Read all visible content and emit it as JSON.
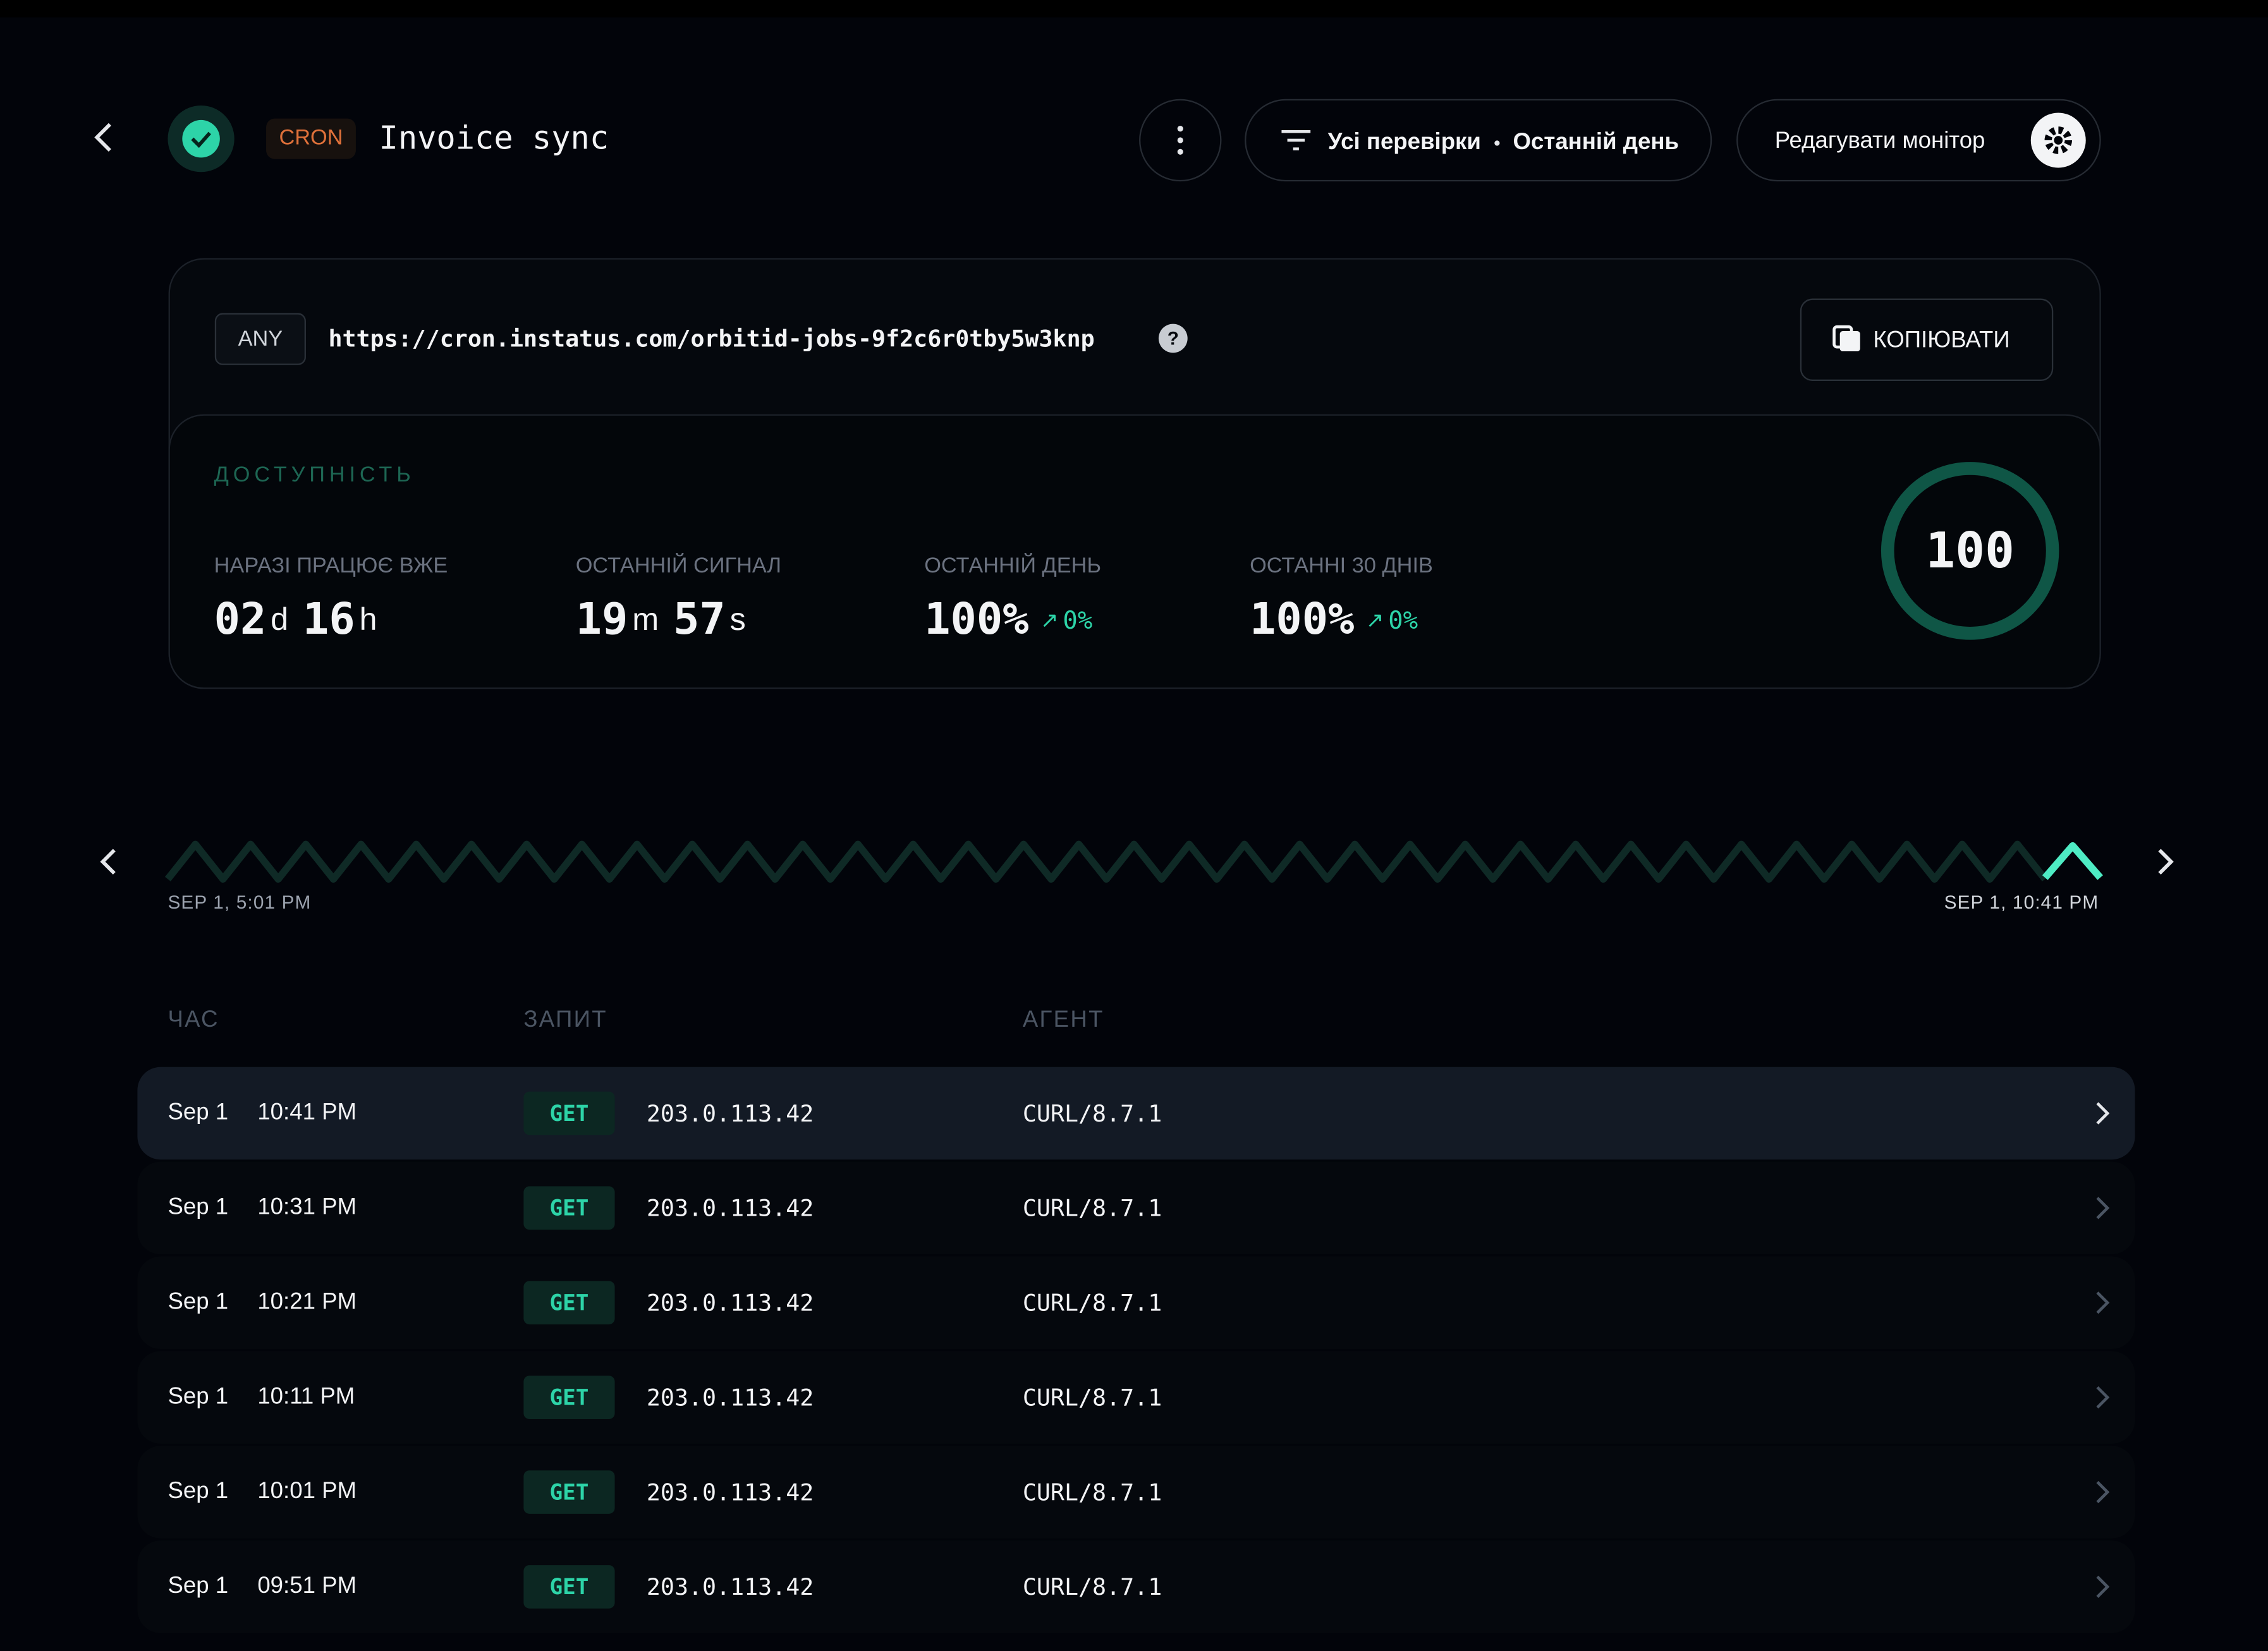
{
  "header": {
    "tag": "CRON",
    "title": "Invoice sync",
    "filter_checks": "Усі перевірки",
    "filter_period": "Останній день",
    "edit_button": "Редагувати монітор"
  },
  "endpoint": {
    "method": "ANY",
    "url": "https://cron.instatus.com/orbitid-jobs-9f2c6r0tby5w3knp",
    "copy_button": "КОПІЮВАТИ"
  },
  "availability": {
    "title": "ДОСТУПНІСТЬ",
    "score": "100",
    "stats": [
      {
        "label": "НАРАЗІ ПРАЦЮЄ ВЖЕ",
        "parts": [
          "02",
          "d",
          "16",
          "h"
        ]
      },
      {
        "label": "ОСТАННІЙ СИГНАЛ",
        "parts": [
          "19",
          "m",
          "57",
          "s"
        ]
      },
      {
        "label": "ОСТАННІЙ ДЕНЬ",
        "value": "100%",
        "change": "0%"
      },
      {
        "label": "ОСТАННІ 30 ДНІВ",
        "value": "100%",
        "change": "0%"
      }
    ]
  },
  "timeline": {
    "start": "SEP 1, 5:01 PM",
    "end": "SEP 1, 10:41 PM"
  },
  "table": {
    "columns": [
      "ЧАС",
      "ЗАПИТ",
      "АГЕНТ"
    ],
    "rows": [
      [
        "Sep 1",
        "10:41 PM",
        "GET",
        "203.0.113.42",
        "CURL/8.7.1"
      ],
      [
        "Sep 1",
        "10:31 PM",
        "GET",
        "203.0.113.42",
        "CURL/8.7.1"
      ],
      [
        "Sep 1",
        "10:21 PM",
        "GET",
        "203.0.113.42",
        "CURL/8.7.1"
      ],
      [
        "Sep 1",
        "10:11 PM",
        "GET",
        "203.0.113.42",
        "CURL/8.7.1"
      ],
      [
        "Sep 1",
        "10:01 PM",
        "GET",
        "203.0.113.42",
        "CURL/8.7.1"
      ],
      [
        "Sep 1",
        "09:51 PM",
        "GET",
        "203.0.113.42",
        "CURL/8.7.1"
      ]
    ]
  }
}
